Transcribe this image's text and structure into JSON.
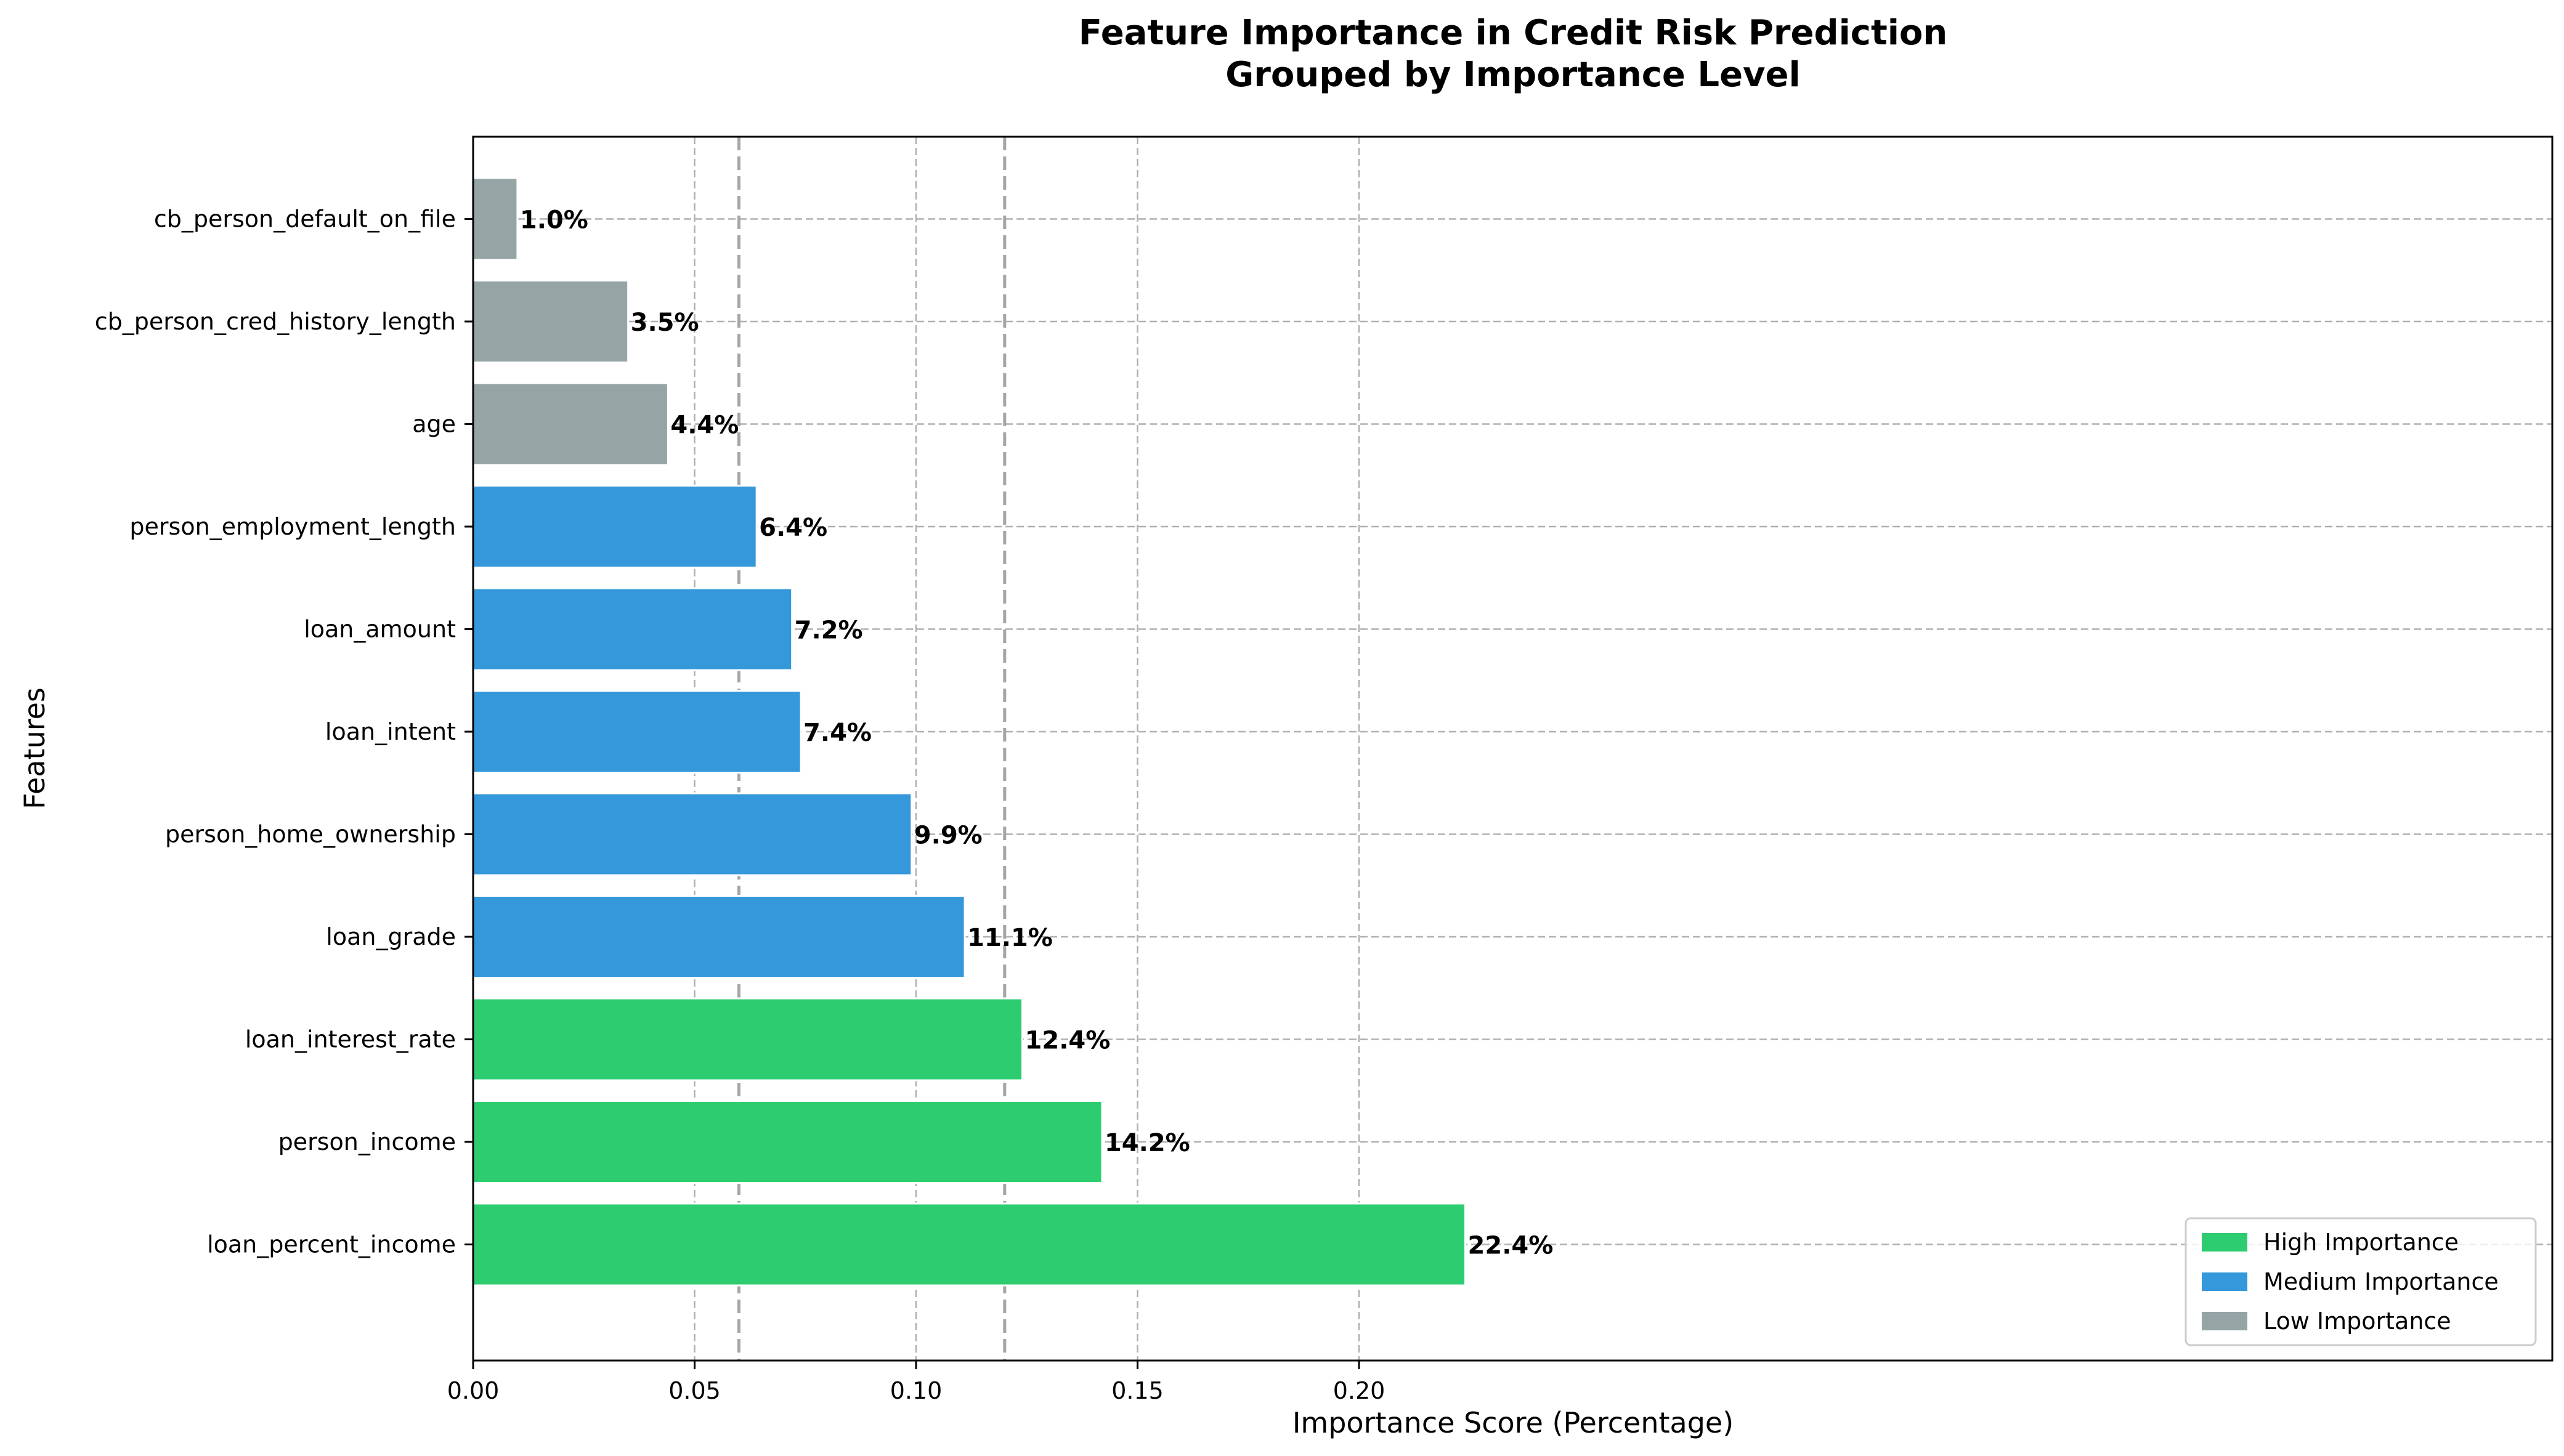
{
  "chart_data": {
    "type": "bar",
    "orientation": "horizontal",
    "title": "Feature Importance in Credit Risk Prediction",
    "subtitle": "Grouped by Importance Level",
    "xlabel": "Importance Score (Percentage)",
    "ylabel": "Features",
    "xlim": [
      0,
      0.235
    ],
    "xticks": [
      0.0,
      0.05,
      0.1,
      0.15,
      0.2
    ],
    "xtick_labels": [
      "0.00",
      "0.05",
      "0.10",
      "0.15",
      "0.20"
    ],
    "threshold_lines": [
      0.06,
      0.12
    ],
    "grid": true,
    "legend_position": "bottom-right",
    "categories": [
      "loan_percent_income",
      "person_income",
      "loan_interest_rate",
      "loan_grade",
      "person_home_ownership",
      "loan_intent",
      "loan_amount",
      "person_employment_length",
      "age",
      "cb_person_cred_history_length",
      "cb_person_default_on_file"
    ],
    "values": [
      0.224,
      0.142,
      0.124,
      0.111,
      0.099,
      0.074,
      0.072,
      0.064,
      0.044,
      0.035,
      0.01
    ],
    "data_labels": [
      "22.4%",
      "14.2%",
      "12.4%",
      "11.1%",
      "9.9%",
      "7.4%",
      "7.2%",
      "6.4%",
      "4.4%",
      "3.5%",
      "1.0%"
    ],
    "groups": [
      "high",
      "high",
      "high",
      "medium",
      "medium",
      "medium",
      "medium",
      "medium",
      "low",
      "low",
      "low"
    ],
    "series": [
      {
        "key": "high",
        "name": "High Importance",
        "color": "#2ecc71"
      },
      {
        "key": "medium",
        "name": "Medium Importance",
        "color": "#3498db"
      },
      {
        "key": "low",
        "name": "Low Importance",
        "color": "#95a5a6"
      }
    ]
  }
}
